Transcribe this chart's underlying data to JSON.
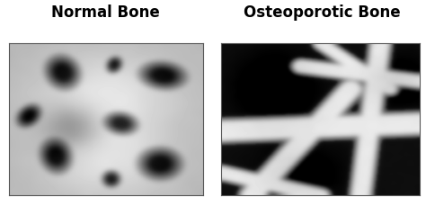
{
  "title_left": "Normal Bone",
  "title_right": "Osteoporotic Bone",
  "title_fontsize": 12,
  "title_fontweight": "bold",
  "bg_color": "#ffffff",
  "fig_width": 4.74,
  "fig_height": 2.19,
  "dpi": 100,
  "border_color": "#555555",
  "border_linewidth": 0.8
}
